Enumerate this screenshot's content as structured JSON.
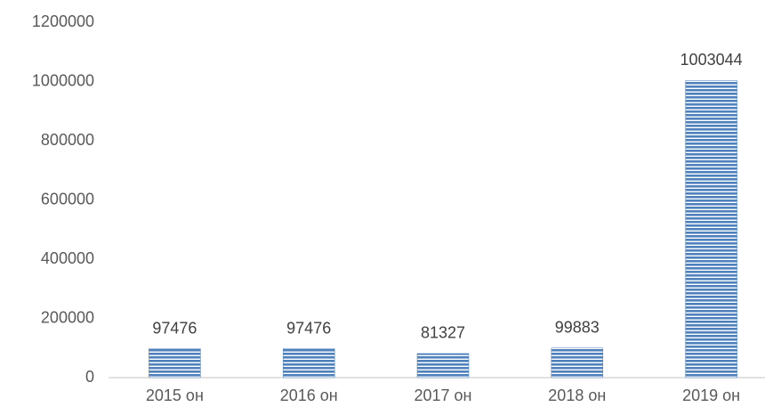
{
  "chart_data": {
    "type": "bar",
    "categories": [
      "2015 он",
      "2016 он",
      "2017 он",
      "2018 он",
      "2019 он"
    ],
    "values": [
      97476,
      97476,
      81327,
      99883,
      1003044
    ],
    "color": "#4f81bd",
    "ylim": [
      0,
      1200000
    ],
    "yticks": [
      0,
      200000,
      400000,
      600000,
      800000,
      1000000,
      1200000
    ],
    "grid": false
  }
}
